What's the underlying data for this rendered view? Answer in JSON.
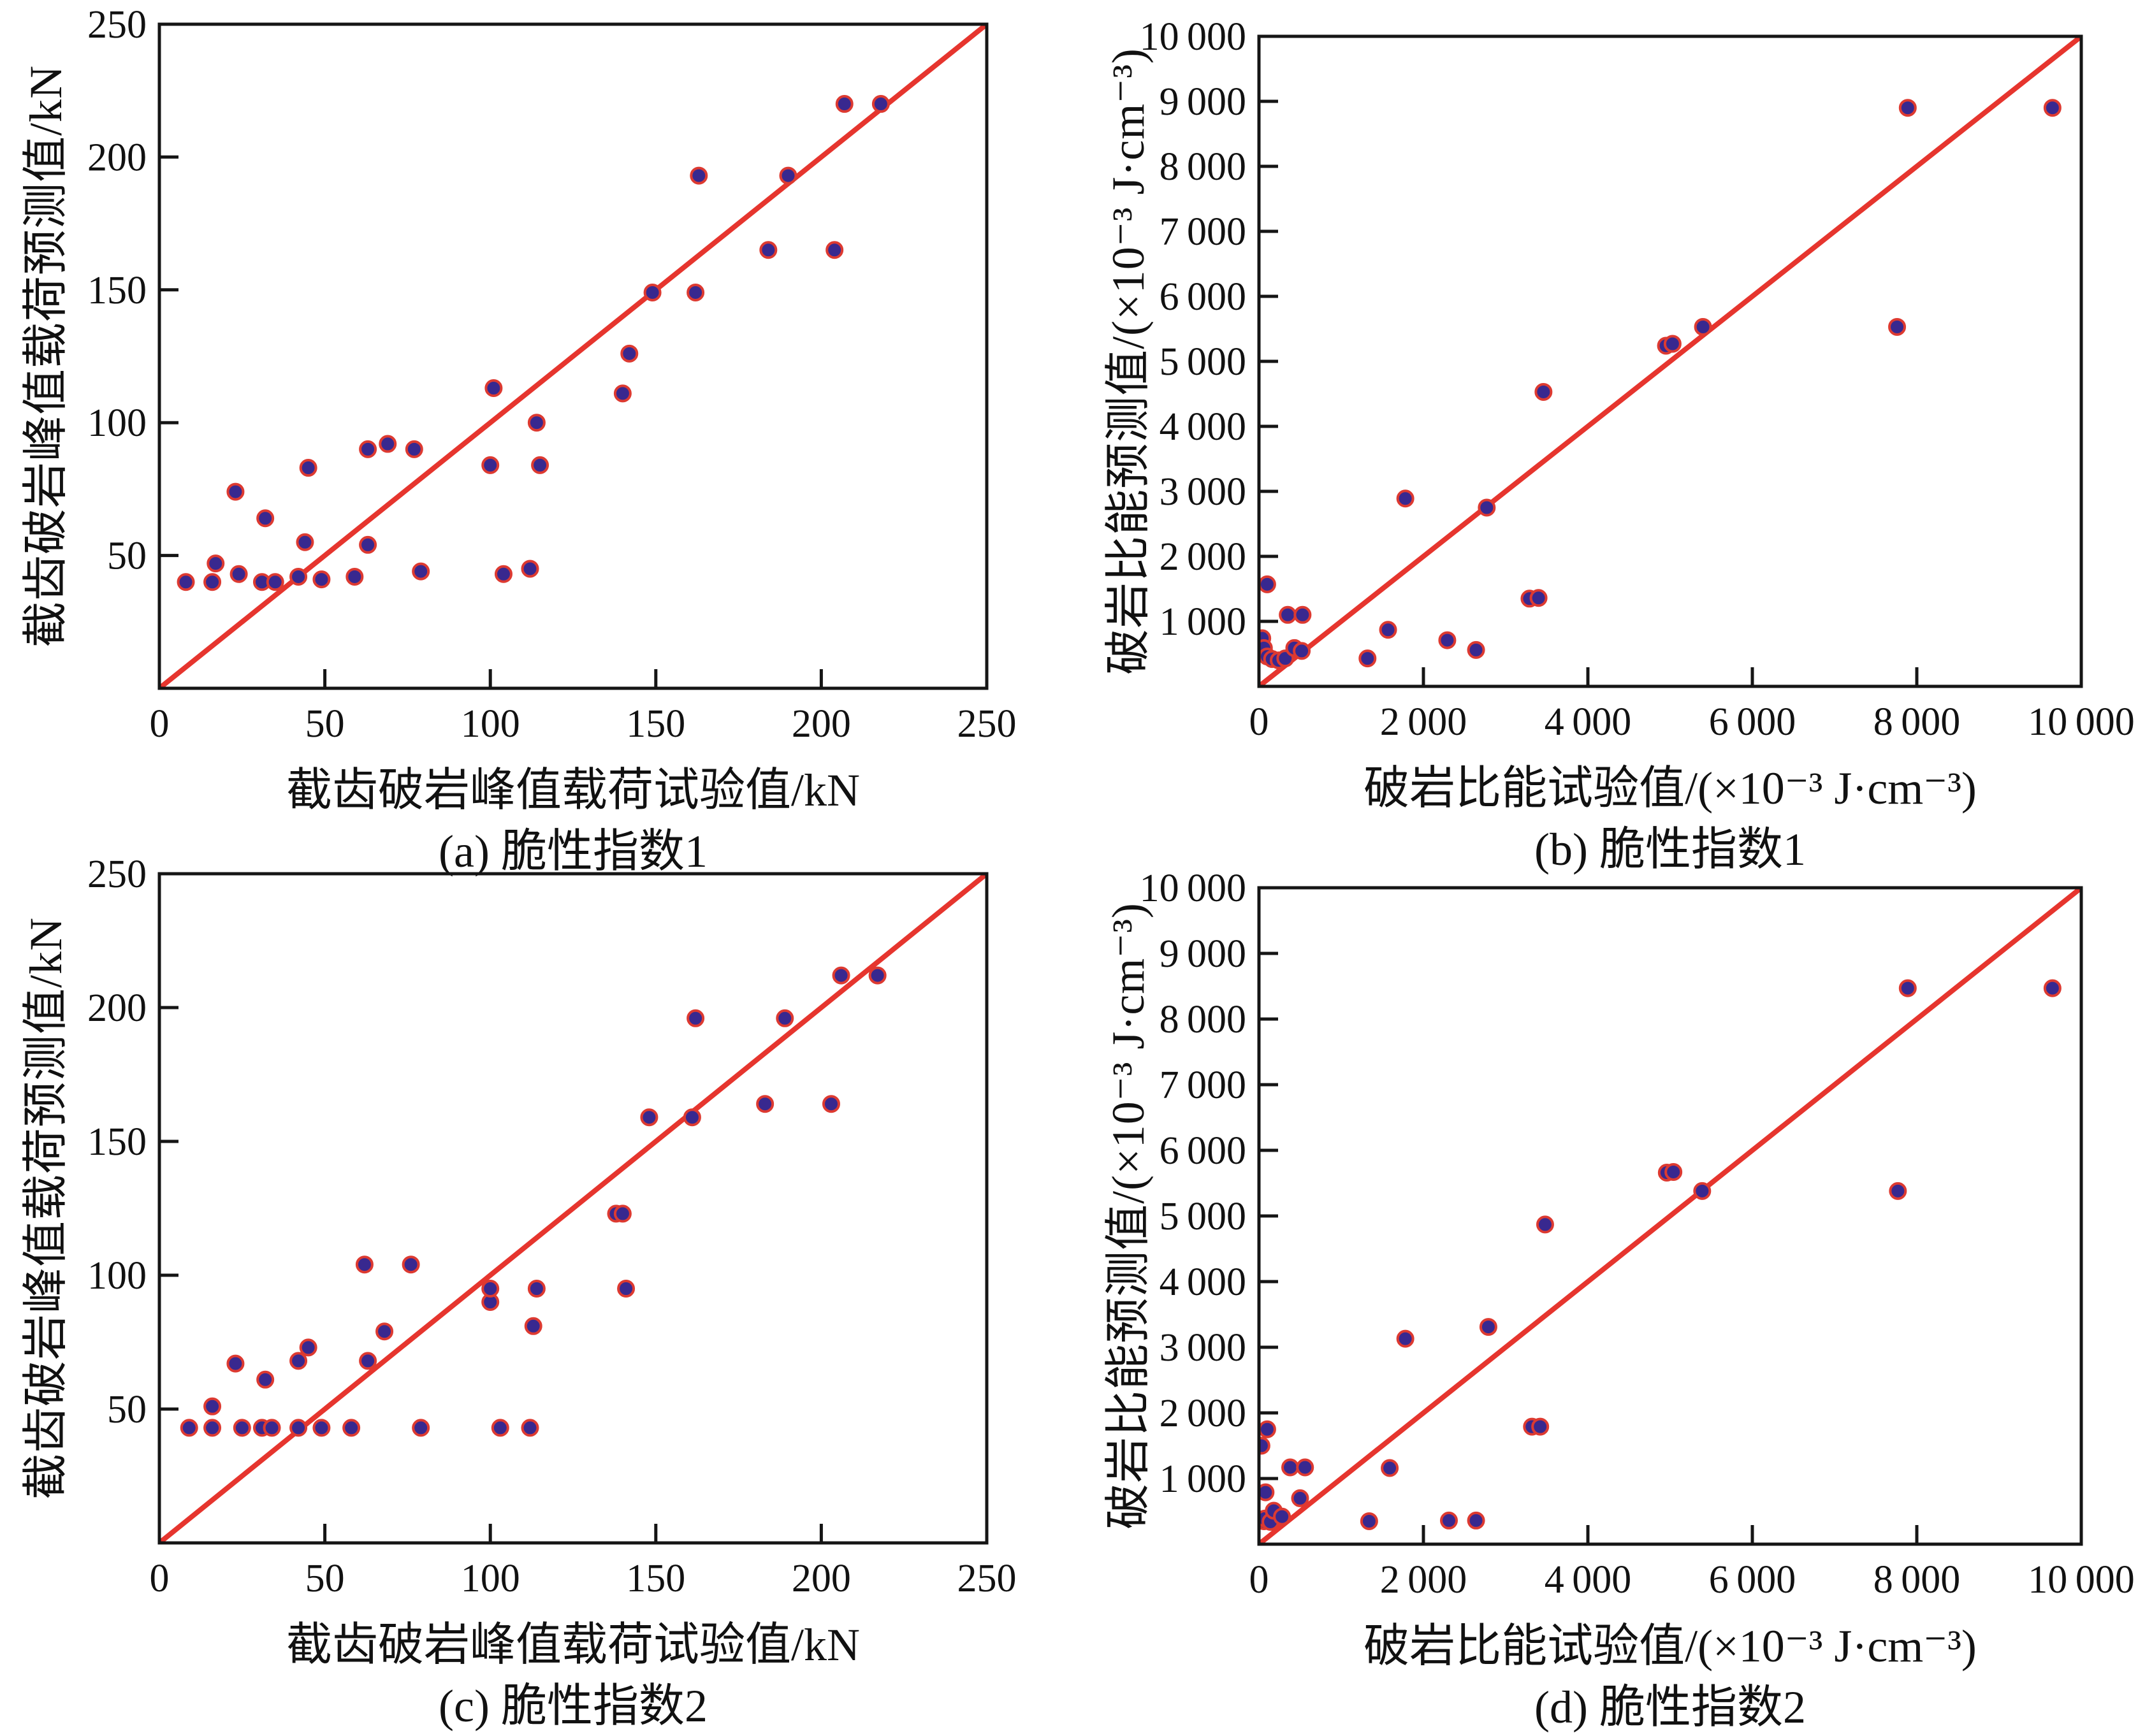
{
  "style": {
    "background": "#ffffff",
    "axis_color": "#151515",
    "text_color": "#111111",
    "identity_line_color": "#e6352e",
    "point_fill": "#38288f",
    "point_stroke": "#dd3a31"
  },
  "chart_data": [
    {
      "type": "scatter",
      "title": "(a) 脆性指数1",
      "xlabel": "截齿破岩峰值载荷试验值/kN",
      "ylabel": "截齿破岩峰值载荷预测值/kN",
      "xlim": [
        0,
        250
      ],
      "ylim": [
        0,
        250
      ],
      "xtick_values": [
        0,
        50,
        100,
        150,
        200,
        250
      ],
      "xtick_labels": [
        "0",
        "50",
        "100",
        "150",
        "200",
        "250"
      ],
      "ytick_values": [
        50,
        100,
        150,
        200,
        250
      ],
      "ytick_labels": [
        "50",
        "100",
        "150",
        "200",
        "250"
      ],
      "grid": false,
      "identity_line": [
        [
          0,
          0
        ],
        [
          250,
          250
        ]
      ],
      "points": [
        [
          8,
          40
        ],
        [
          16,
          40
        ],
        [
          17,
          47
        ],
        [
          23,
          74
        ],
        [
          24,
          43
        ],
        [
          31,
          40
        ],
        [
          32,
          64
        ],
        [
          35,
          40
        ],
        [
          42,
          42
        ],
        [
          44,
          55
        ],
        [
          45,
          83
        ],
        [
          49,
          41
        ],
        [
          59,
          42
        ],
        [
          63,
          54
        ],
        [
          63,
          90
        ],
        [
          69,
          92
        ],
        [
          77,
          90
        ],
        [
          79,
          44
        ],
        [
          100,
          84
        ],
        [
          101,
          113
        ],
        [
          104,
          43
        ],
        [
          112,
          45
        ],
        [
          114,
          100
        ],
        [
          115,
          84
        ],
        [
          140,
          111
        ],
        [
          142,
          126
        ],
        [
          149,
          149
        ],
        [
          162,
          149
        ],
        [
          163,
          193
        ],
        [
          184,
          165
        ],
        [
          190,
          193
        ],
        [
          204,
          165
        ],
        [
          207,
          220
        ],
        [
          218,
          220
        ]
      ]
    },
    {
      "type": "scatter",
      "title": "(b) 脆性指数1",
      "xlabel": "破岩比能试验值/(×10⁻³ J·cm⁻³)",
      "ylabel": "破岩比能预测值/(×10⁻³ J·cm⁻³)",
      "xlim": [
        0,
        10000
      ],
      "ylim": [
        0,
        10000
      ],
      "xtick_values": [
        0,
        2000,
        4000,
        6000,
        8000,
        10000
      ],
      "xtick_labels": [
        "0",
        "2 000",
        "4 000",
        "6 000",
        "8 000",
        "10 000"
      ],
      "ytick_values": [
        1000,
        2000,
        3000,
        4000,
        5000,
        6000,
        7000,
        8000,
        9000,
        10000
      ],
      "ytick_labels": [
        "1 000",
        "2 000",
        "3 000",
        "4 000",
        "5 000",
        "6 000",
        "7 000",
        "8 000",
        "9 000",
        "10 000"
      ],
      "grid": false,
      "identity_line": [
        [
          0,
          0
        ],
        [
          10000,
          10000
        ]
      ],
      "points": [
        [
          40,
          740
        ],
        [
          60,
          590
        ],
        [
          100,
          460
        ],
        [
          160,
          420
        ],
        [
          240,
          400
        ],
        [
          320,
          430
        ],
        [
          430,
          590
        ],
        [
          520,
          545
        ],
        [
          350,
          1100
        ],
        [
          530,
          1100
        ],
        [
          100,
          1570
        ],
        [
          1320,
          430
        ],
        [
          1570,
          870
        ],
        [
          1780,
          2890
        ],
        [
          2290,
          710
        ],
        [
          2640,
          560
        ],
        [
          2770,
          2750
        ],
        [
          3290,
          1350
        ],
        [
          3400,
          1360
        ],
        [
          3460,
          4530
        ],
        [
          4950,
          5240
        ],
        [
          5030,
          5270
        ],
        [
          5400,
          5530
        ],
        [
          7760,
          5530
        ],
        [
          7890,
          8900
        ],
        [
          9650,
          8900
        ]
      ]
    },
    {
      "type": "scatter",
      "title": "(c) 脆性指数2",
      "xlabel": "截齿破岩峰值载荷试验值/kN",
      "ylabel": "截齿破岩峰值载荷预测值/kN",
      "xlim": [
        0,
        250
      ],
      "ylim": [
        0,
        250
      ],
      "xtick_values": [
        0,
        50,
        100,
        150,
        200,
        250
      ],
      "xtick_labels": [
        "0",
        "50",
        "100",
        "150",
        "200",
        "250"
      ],
      "ytick_values": [
        50,
        100,
        150,
        200,
        250
      ],
      "ytick_labels": [
        "50",
        "100",
        "150",
        "200",
        "250"
      ],
      "grid": false,
      "identity_line": [
        [
          0,
          0
        ],
        [
          250,
          250
        ]
      ],
      "points": [
        [
          9,
          43
        ],
        [
          16,
          51
        ],
        [
          16,
          43
        ],
        [
          23,
          67
        ],
        [
          25,
          43
        ],
        [
          31,
          43
        ],
        [
          32,
          61
        ],
        [
          34,
          43
        ],
        [
          42,
          43
        ],
        [
          42,
          68
        ],
        [
          45,
          73
        ],
        [
          49,
          43
        ],
        [
          58,
          43
        ],
        [
          62,
          104
        ],
        [
          63,
          68
        ],
        [
          68,
          79
        ],
        [
          76,
          104
        ],
        [
          79,
          43
        ],
        [
          100,
          90
        ],
        [
          100,
          95
        ],
        [
          103,
          43
        ],
        [
          112,
          43
        ],
        [
          113,
          81
        ],
        [
          114,
          95
        ],
        [
          138,
          123
        ],
        [
          140,
          123
        ],
        [
          141,
          95
        ],
        [
          148,
          159
        ],
        [
          161,
          159
        ],
        [
          162,
          196
        ],
        [
          183,
          164
        ],
        [
          189,
          196
        ],
        [
          203,
          164
        ],
        [
          206,
          212
        ],
        [
          217,
          212
        ]
      ]
    },
    {
      "type": "scatter",
      "title": "(d) 脆性指数2",
      "xlabel": "破岩比能试验值/(×10⁻³ J·cm⁻³)",
      "ylabel": "破岩比能预测值/(×10⁻³ J·cm⁻³)",
      "xlim": [
        0,
        10000
      ],
      "ylim": [
        0,
        10000
      ],
      "xtick_values": [
        0,
        2000,
        4000,
        6000,
        8000,
        10000
      ],
      "xtick_labels": [
        "0",
        "2 000",
        "4 000",
        "6 000",
        "8 000",
        "10 000"
      ],
      "ytick_values": [
        1000,
        2000,
        3000,
        4000,
        5000,
        6000,
        7000,
        8000,
        9000,
        10000
      ],
      "ytick_labels": [
        "1 000",
        "2 000",
        "3 000",
        "4 000",
        "5 000",
        "6 000",
        "7 000",
        "8 000",
        "9 000",
        "10 000"
      ],
      "grid": false,
      "identity_line": [
        [
          0,
          0
        ],
        [
          10000,
          10000
        ]
      ],
      "points": [
        [
          30,
          1500
        ],
        [
          60,
          350
        ],
        [
          70,
          390
        ],
        [
          80,
          790
        ],
        [
          100,
          1750
        ],
        [
          140,
          340
        ],
        [
          180,
          510
        ],
        [
          280,
          420
        ],
        [
          380,
          1170
        ],
        [
          500,
          700
        ],
        [
          560,
          1170
        ],
        [
          1340,
          350
        ],
        [
          1590,
          1160
        ],
        [
          1780,
          3130
        ],
        [
          2310,
          360
        ],
        [
          2640,
          360
        ],
        [
          2790,
          3310
        ],
        [
          3320,
          1790
        ],
        [
          3420,
          1790
        ],
        [
          3480,
          4870
        ],
        [
          4960,
          5660
        ],
        [
          5040,
          5670
        ],
        [
          5390,
          5380
        ],
        [
          7770,
          5380
        ],
        [
          7890,
          8470
        ],
        [
          9650,
          8470
        ]
      ]
    }
  ]
}
